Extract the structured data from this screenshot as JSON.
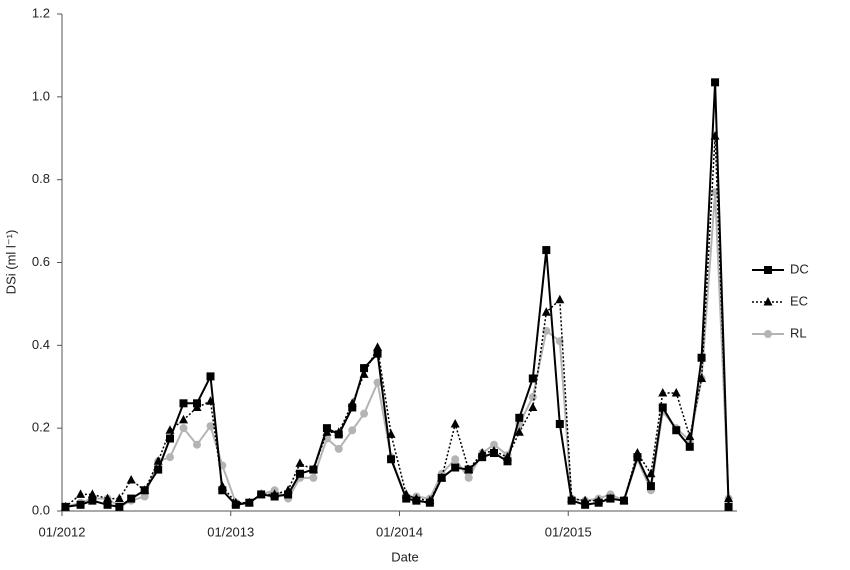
{
  "chart_data": {
    "type": "line",
    "xlabel": "Date",
    "ylabel": "DSi (ml l⁻¹)",
    "x": [
      2012.02,
      2012.11,
      2012.18,
      2012.27,
      2012.34,
      2012.41,
      2012.49,
      2012.57,
      2012.64,
      2012.72,
      2012.8,
      2012.88,
      2012.95,
      2013.03,
      2013.11,
      2013.18,
      2013.26,
      2013.34,
      2013.41,
      2013.49,
      2013.57,
      2013.64,
      2013.72,
      2013.79,
      2013.87,
      2013.95,
      2014.04,
      2014.1,
      2014.18,
      2014.25,
      2014.33,
      2014.41,
      2014.49,
      2014.56,
      2014.64,
      2014.71,
      2014.79,
      2014.87,
      2014.95,
      2015.02,
      2015.1,
      2015.18,
      2015.25,
      2015.33,
      2015.41,
      2015.49,
      2015.56,
      2015.64,
      2015.72,
      2015.79,
      2015.87,
      2015.95
    ],
    "series": [
      {
        "name": "DC",
        "color": "#000000",
        "dash": "solid",
        "marker": "square",
        "values": [
          0.01,
          0.015,
          0.025,
          0.015,
          0.01,
          0.03,
          0.05,
          0.1,
          0.175,
          0.26,
          0.26,
          0.325,
          0.05,
          0.015,
          0.02,
          0.04,
          0.035,
          0.04,
          0.09,
          0.1,
          0.2,
          0.185,
          0.25,
          0.345,
          0.38,
          0.125,
          0.03,
          0.025,
          0.02,
          0.08,
          0.105,
          0.1,
          0.13,
          0.14,
          0.12,
          0.225,
          0.32,
          0.63,
          0.21,
          0.025,
          0.015,
          0.02,
          0.03,
          0.025,
          0.13,
          0.06,
          0.25,
          0.195,
          0.155,
          0.37,
          1.035,
          0.01
        ]
      },
      {
        "name": "EC",
        "color": "#000000",
        "dash": "dotted",
        "marker": "triangle",
        "values": [
          0.01,
          0.04,
          0.04,
          0.03,
          0.03,
          0.075,
          0.05,
          0.12,
          0.195,
          0.22,
          0.25,
          0.265,
          0.06,
          0.02,
          0.02,
          0.04,
          0.04,
          0.05,
          0.115,
          0.1,
          0.19,
          0.19,
          0.26,
          0.33,
          0.395,
          0.185,
          0.04,
          0.03,
          0.025,
          0.08,
          0.21,
          0.1,
          0.14,
          0.145,
          0.13,
          0.19,
          0.25,
          0.48,
          0.51,
          0.03,
          0.025,
          0.025,
          0.03,
          0.025,
          0.14,
          0.09,
          0.285,
          0.285,
          0.18,
          0.32,
          0.905,
          0.03
        ]
      },
      {
        "name": "RL",
        "color": "#b4b4b4",
        "dash": "solid",
        "marker": "circle",
        "values": [
          0.01,
          0.02,
          0.03,
          0.03,
          0.01,
          0.025,
          0.035,
          0.12,
          0.13,
          0.2,
          0.16,
          0.205,
          0.11,
          0.02,
          0.02,
          0.04,
          0.05,
          0.03,
          0.08,
          0.08,
          0.175,
          0.15,
          0.195,
          0.235,
          0.31,
          0.13,
          0.03,
          0.035,
          0.03,
          0.09,
          0.125,
          0.08,
          0.14,
          0.16,
          0.135,
          0.21,
          0.275,
          0.435,
          0.41,
          0.03,
          0.025,
          0.03,
          0.04,
          0.025,
          0.125,
          0.05,
          0.24,
          0.2,
          0.17,
          0.32,
          0.77,
          0.03
        ]
      }
    ],
    "xlim": [
      2012,
      2016
    ],
    "xticks": [
      {
        "value": 2012,
        "label": "01/2012"
      },
      {
        "value": 2013,
        "label": "01/2013"
      },
      {
        "value": 2014,
        "label": "01/2014"
      },
      {
        "value": 2015,
        "label": "01/2015"
      }
    ],
    "ylim": [
      0,
      1.2
    ],
    "yticks": [
      {
        "value": 0,
        "label": "0.0"
      },
      {
        "value": 0.2,
        "label": "0.2"
      },
      {
        "value": 0.4,
        "label": "0.4"
      },
      {
        "value": 0.6,
        "label": "0.6"
      },
      {
        "value": 0.8,
        "label": "0.8"
      },
      {
        "value": 1.0,
        "label": "1.0"
      },
      {
        "value": 1.2,
        "label": "1.2"
      }
    ],
    "grid": false,
    "legend": "right"
  }
}
